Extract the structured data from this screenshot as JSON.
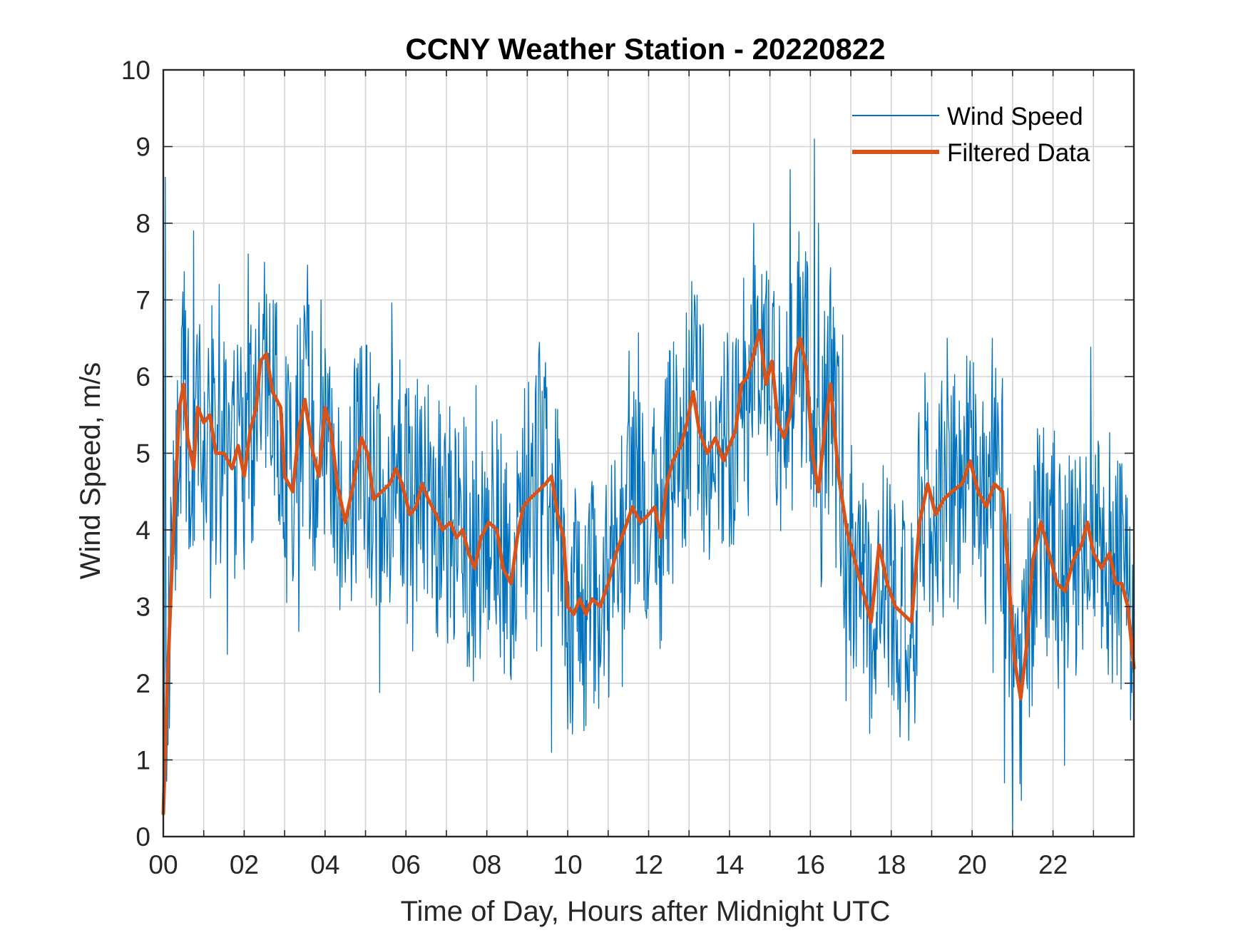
{
  "chart_data": {
    "type": "line",
    "title": "CCNY Weather Station - 20220822",
    "xlabel": "Time of Day, Hours after Midnight UTC",
    "ylabel": "Wind Speed, m/s",
    "xlim": [
      0,
      24
    ],
    "ylim": [
      0,
      10
    ],
    "grid": true,
    "legend_position": "top-right",
    "x_ticks": [
      0,
      2,
      4,
      6,
      8,
      10,
      12,
      14,
      16,
      18,
      20,
      22
    ],
    "x_tick_labels": [
      "00",
      "02",
      "04",
      "06",
      "08",
      "10",
      "12",
      "14",
      "16",
      "18",
      "20",
      "22"
    ],
    "y_ticks": [
      0,
      1,
      2,
      3,
      4,
      5,
      6,
      7,
      8,
      9,
      10
    ],
    "y_tick_labels": [
      "0",
      "1",
      "2",
      "3",
      "4",
      "5",
      "6",
      "7",
      "8",
      "9",
      "10"
    ],
    "series": [
      {
        "name": "Wind Speed",
        "color": "#0072BD",
        "noise_amplitude": 1.0,
        "note": "high-frequency raw samples oscillating around the filtered curve; selected peaks listed",
        "peaks": [
          {
            "x": 0.05,
            "y": 8.6
          },
          {
            "x": 0.75,
            "y": 7.9
          },
          {
            "x": 2.1,
            "y": 7.6
          },
          {
            "x": 3.9,
            "y": 7.0
          },
          {
            "x": 14.6,
            "y": 8.0
          },
          {
            "x": 15.5,
            "y": 8.7
          },
          {
            "x": 16.1,
            "y": 9.1
          },
          {
            "x": 16.2,
            "y": 8.0
          },
          {
            "x": 21.0,
            "y": 0.0
          },
          {
            "x": 20.8,
            "y": 0.7
          },
          {
            "x": 9.6,
            "y": 1.1
          },
          {
            "x": 23.6,
            "y": 4.9
          }
        ]
      },
      {
        "name": "Filtered Data",
        "color": "#D95319",
        "x": [
          0.0,
          0.1,
          0.25,
          0.4,
          0.5,
          0.6,
          0.75,
          0.85,
          1.0,
          1.15,
          1.3,
          1.5,
          1.7,
          1.85,
          2.0,
          2.15,
          2.3,
          2.4,
          2.55,
          2.7,
          2.9,
          3.0,
          3.2,
          3.35,
          3.5,
          3.7,
          3.85,
          4.0,
          4.15,
          4.3,
          4.5,
          4.7,
          4.9,
          5.05,
          5.2,
          5.4,
          5.6,
          5.75,
          5.9,
          6.1,
          6.25,
          6.4,
          6.55,
          6.75,
          6.9,
          7.1,
          7.25,
          7.4,
          7.55,
          7.7,
          7.85,
          8.05,
          8.25,
          8.4,
          8.6,
          8.75,
          8.9,
          9.05,
          9.25,
          9.45,
          9.6,
          9.75,
          9.9,
          10.0,
          10.15,
          10.3,
          10.45,
          10.6,
          10.8,
          11.0,
          11.2,
          11.4,
          11.6,
          11.8,
          12.0,
          12.15,
          12.3,
          12.45,
          12.6,
          12.8,
          12.95,
          13.1,
          13.25,
          13.45,
          13.65,
          13.85,
          14.0,
          14.15,
          14.3,
          14.45,
          14.6,
          14.75,
          14.9,
          15.05,
          15.2,
          15.35,
          15.5,
          15.65,
          15.75,
          15.9,
          16.05,
          16.2,
          16.35,
          16.5,
          16.7,
          16.9,
          17.1,
          17.3,
          17.5,
          17.7,
          17.9,
          18.1,
          18.3,
          18.5,
          18.7,
          18.9,
          19.1,
          19.3,
          19.5,
          19.75,
          19.95,
          20.15,
          20.35,
          20.55,
          20.75,
          20.9,
          21.05,
          21.2,
          21.35,
          21.5,
          21.7,
          21.9,
          22.1,
          22.3,
          22.5,
          22.7,
          22.85,
          23.0,
          23.2,
          23.4,
          23.55,
          23.7,
          23.85,
          24.0
        ],
        "values": [
          0.3,
          2.0,
          4.0,
          5.6,
          5.9,
          5.2,
          4.8,
          5.6,
          5.4,
          5.5,
          5.0,
          5.0,
          4.8,
          5.1,
          4.7,
          5.3,
          5.6,
          6.2,
          6.3,
          5.8,
          5.6,
          4.7,
          4.5,
          5.3,
          5.7,
          5.0,
          4.7,
          5.6,
          5.3,
          4.6,
          4.1,
          4.6,
          5.2,
          5.0,
          4.4,
          4.5,
          4.6,
          4.8,
          4.6,
          4.2,
          4.3,
          4.6,
          4.4,
          4.2,
          4.0,
          4.1,
          3.9,
          4.0,
          3.7,
          3.5,
          3.9,
          4.1,
          4.0,
          3.5,
          3.3,
          3.9,
          4.3,
          4.4,
          4.5,
          4.6,
          4.7,
          4.2,
          3.9,
          3.0,
          2.9,
          3.1,
          2.9,
          3.1,
          3.0,
          3.3,
          3.7,
          4.0,
          4.3,
          4.1,
          4.2,
          4.3,
          3.9,
          4.6,
          4.9,
          5.1,
          5.4,
          5.8,
          5.3,
          5.0,
          5.2,
          4.9,
          5.1,
          5.3,
          5.9,
          6.0,
          6.3,
          6.6,
          5.9,
          6.2,
          5.4,
          5.2,
          5.5,
          6.3,
          6.5,
          6.1,
          5.0,
          4.5,
          5.3,
          5.9,
          4.7,
          4.0,
          3.6,
          3.2,
          2.8,
          3.8,
          3.3,
          3.0,
          2.9,
          2.8,
          4.1,
          4.6,
          4.2,
          4.4,
          4.5,
          4.6,
          4.9,
          4.5,
          4.3,
          4.6,
          4.5,
          3.4,
          2.3,
          1.8,
          2.5,
          3.6,
          4.1,
          3.7,
          3.3,
          3.2,
          3.6,
          3.8,
          4.1,
          3.7,
          3.5,
          3.7,
          3.3,
          3.3,
          3.0,
          2.2
        ]
      }
    ]
  }
}
